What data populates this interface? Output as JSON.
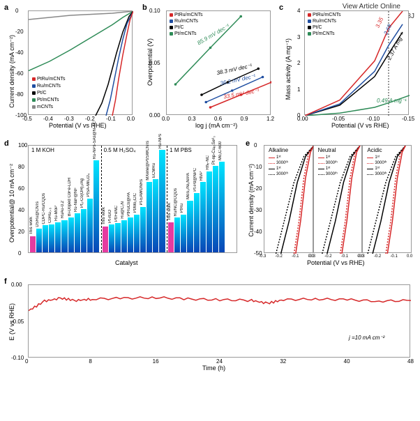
{
  "figure": {
    "doi_line1": "View Article Online",
    "doi_line2": "DOI: 10.1039/D1EE02518J",
    "colors": {
      "PtRu_mCNTs": "#d62728",
      "Ru_mCNTs": "#1f4ea1",
      "PtC": "#000000",
      "Pt_mCNTs": "#2e8b57",
      "mCNTs": "#888888",
      "bar_this_work": "#e63ba0",
      "bar_top": "#00e5ff",
      "bar_bottom": "#0846b6",
      "grid": "#e0e0e0"
    },
    "panel_a": {
      "label": "a",
      "xlabel": "Potential (V vs RHE)",
      "ylabel": "Current density (mA cm⁻²)",
      "xlim": [
        -0.5,
        0.0
      ],
      "ylim": [
        -100,
        0
      ],
      "xticks": [
        -0.5,
        -0.4,
        -0.3,
        -0.2,
        -0.1,
        0.0
      ],
      "yticks": [
        -100,
        -80,
        -60,
        -40,
        -20,
        0
      ],
      "legend": [
        "PtRu/mCNTs",
        "Ru/mCNTs",
        "Pt/C",
        "Pt/mCNTs",
        "mCNTs"
      ],
      "series": {
        "mCNTs": [
          [
            -0.5,
            -8
          ],
          [
            -0.4,
            -6
          ],
          [
            -0.3,
            -4
          ],
          [
            -0.2,
            -3
          ],
          [
            -0.1,
            -2
          ],
          [
            0.0,
            0
          ]
        ],
        "Pt_mCNTs": [
          [
            -0.5,
            -57
          ],
          [
            -0.4,
            -48
          ],
          [
            -0.3,
            -37
          ],
          [
            -0.2,
            -25
          ],
          [
            -0.1,
            -13
          ],
          [
            -0.05,
            -6
          ],
          [
            0.0,
            0
          ]
        ],
        "PtC": [
          [
            -0.18,
            -100
          ],
          [
            -0.15,
            -88
          ],
          [
            -0.12,
            -70
          ],
          [
            -0.1,
            -55
          ],
          [
            -0.08,
            -40
          ],
          [
            -0.05,
            -20
          ],
          [
            -0.02,
            -5
          ],
          [
            0.0,
            0
          ]
        ],
        "Ru_mCNTs": [
          [
            -0.13,
            -100
          ],
          [
            -0.11,
            -85
          ],
          [
            -0.09,
            -65
          ],
          [
            -0.07,
            -45
          ],
          [
            -0.05,
            -27
          ],
          [
            -0.03,
            -12
          ],
          [
            0.0,
            0
          ]
        ],
        "PtRu_mCNTs": [
          [
            -0.1,
            -100
          ],
          [
            -0.085,
            -85
          ],
          [
            -0.07,
            -65
          ],
          [
            -0.05,
            -42
          ],
          [
            -0.03,
            -22
          ],
          [
            -0.015,
            -8
          ],
          [
            0.0,
            0
          ]
        ]
      }
    },
    "panel_b": {
      "label": "b",
      "xlabel": "log j (mA cm⁻²)",
      "ylabel": "Overpotential (V)",
      "xlim": [
        0.0,
        1.2
      ],
      "ylim": [
        0.0,
        0.1
      ],
      "xticks": [
        0.0,
        0.3,
        0.6,
        0.9,
        1.2
      ],
      "yticks": [
        0.0,
        0.05,
        0.1
      ],
      "legend": [
        "PtRu/mCNTs",
        "Ru/mCNTs",
        "Pt/C",
        "Pt/mCNTs"
      ],
      "slopes": {
        "Pt_mCNTs": "85.9 mV dec⁻¹",
        "PtC": "38.3 mV dec⁻¹",
        "Ru_mCNTs": "36.2 mV dec⁻¹",
        "PtRu_mCNTs": "33.5 mV dec⁻¹"
      },
      "series": {
        "Pt_mCNTs": [
          [
            0.1,
            0.03
          ],
          [
            0.5,
            0.065
          ],
          [
            0.85,
            0.095
          ]
        ],
        "PtC": [
          [
            0.4,
            0.02
          ],
          [
            0.7,
            0.032
          ],
          [
            1.05,
            0.045
          ]
        ],
        "Ru_mCNTs": [
          [
            0.45,
            0.013
          ],
          [
            0.75,
            0.024
          ],
          [
            1.1,
            0.037
          ]
        ],
        "PtRu_mCNTs": [
          [
            0.5,
            0.008
          ],
          [
            0.85,
            0.02
          ],
          [
            1.2,
            0.032
          ]
        ]
      }
    },
    "panel_c": {
      "label": "c",
      "xlabel": "Potential (V vs RHE)",
      "ylabel": "Mass activity (A mg⁻¹)",
      "xlim": [
        0.0,
        -0.15
      ],
      "ylim": [
        0,
        4
      ],
      "xticks": [
        0.0,
        -0.05,
        -0.1,
        -0.15
      ],
      "yticks": [
        0,
        1,
        2,
        3,
        4
      ],
      "legend": [
        "PtRu/mCNTs",
        "Ru/mCNTs",
        "Pt/C",
        "Pt/mCNTs"
      ],
      "ref_line_x": -0.12,
      "annotations": {
        "PtRu_mCNTs": "3.35",
        "Ru_mCNTs": "2.69",
        "PtC": "2.37 A mg⁻¹",
        "Pt_mCNTs": "0.49 A mg⁻¹"
      },
      "series": {
        "PtRu_mCNTs": [
          [
            0,
            0
          ],
          [
            -0.05,
            0.6
          ],
          [
            -0.1,
            2.1
          ],
          [
            -0.12,
            3.35
          ],
          [
            -0.14,
            4.0
          ]
        ],
        "Ru_mCNTs": [
          [
            0,
            0
          ],
          [
            -0.05,
            0.45
          ],
          [
            -0.1,
            1.7
          ],
          [
            -0.12,
            2.69
          ],
          [
            -0.14,
            3.5
          ]
        ],
        "PtC": [
          [
            0,
            0
          ],
          [
            -0.05,
            0.4
          ],
          [
            -0.1,
            1.5
          ],
          [
            -0.12,
            2.37
          ],
          [
            -0.14,
            3.2
          ]
        ],
        "Pt_mCNTs": [
          [
            0,
            0
          ],
          [
            -0.05,
            0.1
          ],
          [
            -0.1,
            0.32
          ],
          [
            -0.12,
            0.49
          ],
          [
            -0.15,
            0.78
          ]
        ]
      }
    },
    "panel_d": {
      "label": "d",
      "xlabel": "Catalyst",
      "ylabel": "Overpotential@ 10 mA cm⁻²",
      "ylim": [
        0,
        100
      ],
      "yticks": [
        0,
        20,
        40,
        60,
        80,
        100
      ],
      "sections": [
        {
          "title": "1 M KOH",
          "bars": [
            {
              "label": "This work",
              "h": 15,
              "this": true
            },
            {
              "label": "DSRu@CNTs",
              "h": 22
            },
            {
              "label": "CDPC-Ru/CQDs",
              "h": 25
            },
            {
              "label": "CoRu₀.₅",
              "h": 26
            },
            {
              "label": "Ru-MoP",
              "h": 28
            },
            {
              "label": "RuAu-0.2",
              "h": 30
            },
            {
              "label": "Bi-Doped CoFe-LDH",
              "h": 32
            },
            {
              "label": "Ru-NaF@NF",
              "h": 36
            },
            {
              "label": "Pt₃-Co(OH)₂/Ag",
              "h": 40
            },
            {
              "label": "PtSA-Mn₃O₄",
              "h": 50
            },
            {
              "label": "Ru-NPs-SAs@N-TC",
              "h": 85
            }
          ]
        },
        {
          "title": "0.5 M H₂SO₄",
          "bars": [
            {
              "label": "This work",
              "h": 24,
              "this": true
            },
            {
              "label": "Pt-rGO",
              "h": 26
            },
            {
              "label": "Pt/FeNC",
              "h": 27
            },
            {
              "label": "Ru@C₂N",
              "h": 30
            },
            {
              "label": "PtRuCo@PA",
              "h": 32
            },
            {
              "label": "Pt/Mo₂C/C",
              "h": 35
            },
            {
              "label": "Pt-EAWONRs",
              "h": 42
            },
            {
              "label": "MXene@Pt/SWCNTs",
              "h": 65
            },
            {
              "label": "ECMRu",
              "h": 68
            },
            {
              "label": "Ru-NPs",
              "h": 95
            }
          ]
        },
        {
          "title": "1 M PBS",
          "bars": [
            {
              "label": "This work",
              "h": 28,
              "this": true
            },
            {
              "label": "Ru/NC@CQDs",
              "h": 32
            },
            {
              "label": "PtRu",
              "h": 35
            },
            {
              "label": "MoS₂/Ni₃N/PA",
              "h": 48
            },
            {
              "label": "Pt-Pd@NPC",
              "h": 55
            },
            {
              "label": "Rh/P",
              "h": 65
            },
            {
              "label": "Rh₅-NC",
              "h": 75
            },
            {
              "label": "Pt-np-Cuₑ₀Se⁸₀",
              "h": 80
            },
            {
              "label": "Mo₂C-600",
              "h": 84
            }
          ]
        }
      ]
    },
    "panel_e": {
      "label": "e",
      "xlabel": "Potential (V vs RHE)",
      "ylabel": "Current density (mA cm⁻²)",
      "xlim": [
        -0.3,
        0.0
      ],
      "ylim": [
        -50,
        0
      ],
      "xticks": [
        -0.3,
        -0.2,
        -0.1,
        0.0
      ],
      "yticks": [
        -50,
        -40,
        -30,
        -20,
        -10,
        0
      ],
      "subpanels": [
        "Alkaline",
        "Neutral",
        "Acidic"
      ],
      "legend": [
        "1ˢᵗ",
        "3000ᵗʰ",
        "1ˢᵗ",
        "3000ᵗʰ"
      ],
      "legend_colors": [
        "#d62728",
        "#d62728",
        "#000000",
        "#000000"
      ],
      "legend_dash": [
        "solid",
        "dotted",
        "solid",
        "dotted"
      ],
      "series_template": {
        "red_1": [
          [
            -0.11,
            -50
          ],
          [
            -0.08,
            -35
          ],
          [
            -0.05,
            -15
          ],
          [
            -0.02,
            -3
          ],
          [
            0.0,
            0
          ]
        ],
        "red_3000": [
          [
            -0.12,
            -50
          ],
          [
            -0.09,
            -35
          ],
          [
            -0.06,
            -15
          ],
          [
            -0.03,
            -3
          ],
          [
            0.0,
            0
          ]
        ],
        "blk_1": [
          [
            -0.2,
            -50
          ],
          [
            -0.15,
            -35
          ],
          [
            -0.1,
            -17
          ],
          [
            -0.05,
            -5
          ],
          [
            0.0,
            0
          ]
        ],
        "blk_3000": [
          [
            -0.23,
            -50
          ],
          [
            -0.18,
            -35
          ],
          [
            -0.12,
            -17
          ],
          [
            -0.06,
            -5
          ],
          [
            0.0,
            0
          ]
        ]
      }
    },
    "panel_f": {
      "label": "f",
      "xlabel": "Time (h)",
      "ylabel": "E (V vs RHE)",
      "xlim": [
        0,
        48
      ],
      "ylim": [
        -0.1,
        0.0
      ],
      "xticks": [
        0,
        8,
        16,
        24,
        32,
        40,
        48
      ],
      "yticks": [
        -0.1,
        -0.05,
        0.0
      ],
      "annotation": "j =10 mA cm⁻²",
      "color": "#d62728",
      "trace": [
        [
          0,
          -0.035
        ],
        [
          2,
          -0.022
        ],
        [
          4,
          -0.018
        ],
        [
          6,
          -0.021
        ],
        [
          8,
          -0.019
        ],
        [
          12,
          -0.018
        ],
        [
          16,
          -0.017
        ],
        [
          20,
          -0.019
        ],
        [
          24,
          -0.02
        ],
        [
          28,
          -0.021
        ],
        [
          30,
          -0.025
        ],
        [
          32,
          -0.02
        ],
        [
          36,
          -0.019
        ],
        [
          40,
          -0.02
        ],
        [
          44,
          -0.022
        ],
        [
          48,
          -0.021
        ]
      ]
    }
  }
}
